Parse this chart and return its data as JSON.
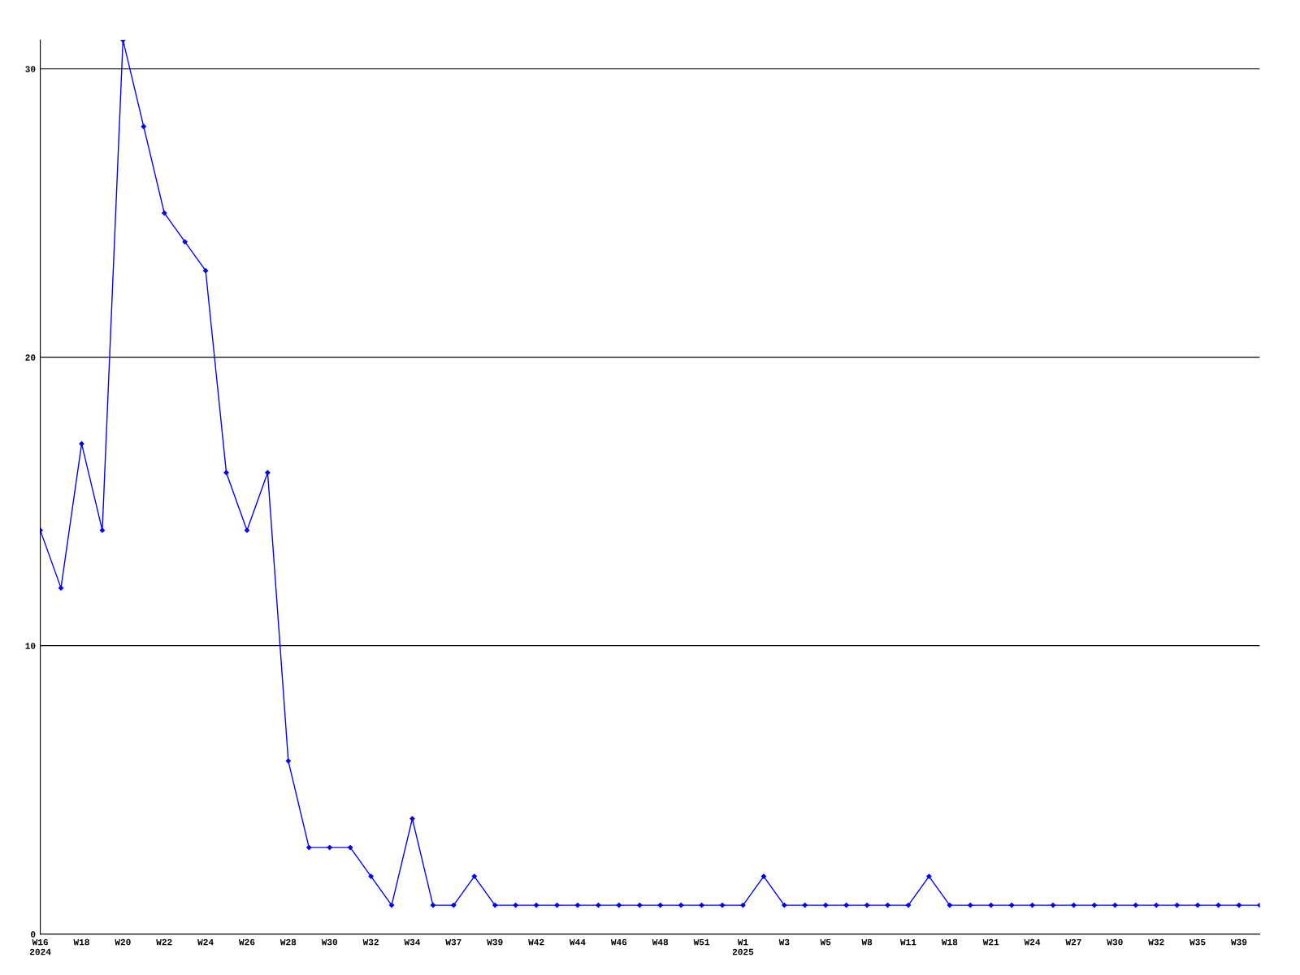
{
  "chart_data": {
    "type": "line",
    "categories": [
      "W16\n2024",
      null,
      "W18",
      null,
      "W20",
      null,
      "W22",
      null,
      "W24",
      null,
      "W26",
      null,
      "W28",
      null,
      "W30",
      null,
      "W32",
      null,
      "W34",
      null,
      "W37",
      null,
      "W39",
      null,
      "W42",
      null,
      "W44",
      null,
      "W46",
      null,
      "W48",
      null,
      "W51",
      null,
      "W1\n2025",
      null,
      "W3",
      null,
      "W5",
      null,
      "W8",
      null,
      "W11",
      null,
      "W18",
      null,
      "W21",
      null,
      "W24",
      null,
      "W27",
      null,
      "W30",
      null,
      "W32",
      null,
      "W35",
      null,
      "W39",
      null
    ],
    "series": [
      {
        "color": "#0000ff",
        "values": [
          14,
          12,
          17,
          14,
          31,
          28,
          25,
          24,
          23,
          16,
          14,
          16,
          6,
          3,
          3,
          3,
          2,
          1,
          4,
          1,
          1,
          2,
          1,
          1,
          1,
          1,
          1,
          1,
          1,
          1,
          1,
          1,
          1,
          1,
          1,
          2,
          1,
          1,
          1,
          1,
          1,
          1,
          1,
          2,
          1,
          1,
          1,
          1,
          1,
          1,
          1,
          1,
          1,
          1,
          1,
          1,
          1,
          1,
          1,
          1
        ]
      }
    ],
    "ylim": [
      0,
      31
    ],
    "yticks": [
      0,
      10,
      20,
      30
    ],
    "grid": "y",
    "marker": "diamond",
    "line_style": "solid",
    "legend": false
  }
}
